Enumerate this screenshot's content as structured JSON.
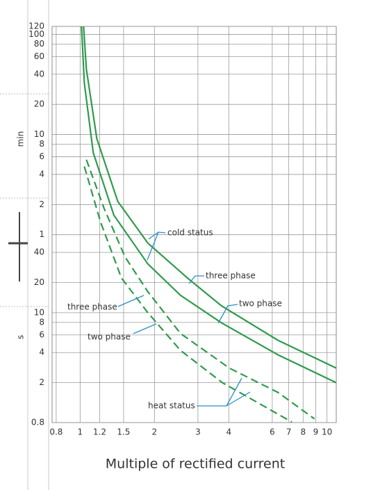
{
  "chart_data": {
    "type": "line",
    "x_label": "Multiple of rectified current",
    "y_units": [
      "min",
      "s"
    ],
    "xscale": "log",
    "yscale": "log",
    "grid": true,
    "xlim": [
      0.77,
      10.9
    ],
    "xticks": [
      0.8,
      1,
      1.2,
      1.5,
      2,
      3,
      4,
      6,
      7,
      8,
      9,
      10
    ],
    "ylim": [
      0.8,
      7200
    ],
    "yticks": [
      {
        "value": 7200,
        "label": "120"
      },
      {
        "value": 6000,
        "label": "100"
      },
      {
        "value": 4800,
        "label": "80"
      },
      {
        "value": 3600,
        "label": "60"
      },
      {
        "value": 2400,
        "label": "40"
      },
      {
        "value": 1200,
        "label": "20"
      },
      {
        "value": 600,
        "label": "10"
      },
      {
        "value": 480,
        "label": "8"
      },
      {
        "value": 360,
        "label": "6"
      },
      {
        "value": 240,
        "label": "4"
      },
      {
        "value": 120,
        "label": "2"
      },
      {
        "value": 60,
        "label": "1"
      },
      40,
      20,
      10,
      8,
      6,
      4,
      2,
      0.8
    ],
    "series": [
      {
        "color": "#2f9a4c",
        "dash": false,
        "x": [
          1.033,
          1.06,
          1.169,
          1.42,
          1.88,
          2.72,
          3.74,
          6.33,
          10.9
        ],
        "values": [
          7200,
          2699,
          545,
          129,
          49.5,
          22.2,
          11.7,
          5.3,
          2.8
        ]
      },
      {
        "color": "#2f9a4c",
        "dash": false,
        "x": [
          1.013,
          1.04,
          1.13,
          1.37,
          1.88,
          2.55,
          3.74,
          6.33,
          10.9
        ],
        "values": [
          7200,
          1959,
          396,
          94,
          30.7,
          14.9,
          7.9,
          3.8,
          2.0
        ]
      },
      {
        "color": "#2f9a4c",
        "dash": true,
        "x": [
          1.06,
          1.25,
          1.52,
          1.88,
          2.55,
          4.02,
          6.33,
          8.9
        ],
        "values": [
          337,
          110,
          36,
          16.2,
          6.2,
          2.8,
          1.6,
          0.87
        ]
      },
      {
        "color": "#2f9a4c",
        "dash": true,
        "x": [
          1.04,
          1.21,
          1.47,
          1.88,
          2.55,
          3.77,
          5.57,
          7.2
        ],
        "values": [
          288,
          80,
          22.2,
          10,
          4.2,
          2.0,
          1.16,
          0.81
        ]
      }
    ],
    "annotations": [
      {
        "text": "cold status"
      },
      {
        "text": "three phase"
      },
      {
        "text": "two phase"
      },
      {
        "text": "three phase"
      },
      {
        "text": "two phase"
      },
      {
        "text": "heat status"
      }
    ]
  }
}
